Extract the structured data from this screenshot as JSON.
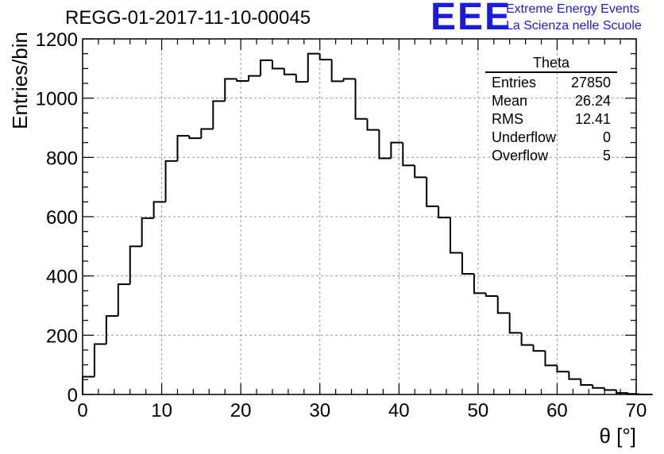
{
  "header": {
    "run_title": "REGG-01-2017-11-10-00045"
  },
  "logo": {
    "mark": "EEE",
    "line1": "Extreme Energy Events",
    "line2": "La Scienza nelle Scuole",
    "color": "#1a1ae6"
  },
  "stats_box": {
    "title": "Theta",
    "rows": [
      {
        "label": "Entries",
        "value": "27850"
      },
      {
        "label": "Mean",
        "value": "26.24"
      },
      {
        "label": "RMS",
        "value": "12.41"
      },
      {
        "label": "Underflow",
        "value": "0"
      },
      {
        "label": "Overflow",
        "value": "5"
      }
    ]
  },
  "chart_data": {
    "type": "histogram",
    "title": "REGG-01-2017-11-10-00045",
    "xlabel": "θ [°]",
    "ylabel": "Entries/bin",
    "xlim": [
      0,
      70
    ],
    "ylim": [
      0,
      1200
    ],
    "grid": true,
    "bin_width": 1.5,
    "bin_edges_start": 0,
    "values": [
      60,
      170,
      265,
      372,
      500,
      595,
      650,
      788,
      873,
      865,
      896,
      990,
      1065,
      1058,
      1075,
      1128,
      1100,
      1080,
      1055,
      1150,
      1130,
      1057,
      1065,
      930,
      893,
      797,
      850,
      773,
      733,
      635,
      597,
      478,
      407,
      342,
      332,
      275,
      208,
      167,
      147,
      98,
      77,
      52,
      32,
      22,
      15,
      5,
      2,
      1,
      0
    ],
    "xticks": [
      0,
      10,
      20,
      30,
      40,
      50,
      60,
      70
    ],
    "yticks": [
      0,
      200,
      400,
      600,
      800,
      1000,
      1200
    ],
    "line_color": "#000000",
    "grid_color": "#999999"
  }
}
